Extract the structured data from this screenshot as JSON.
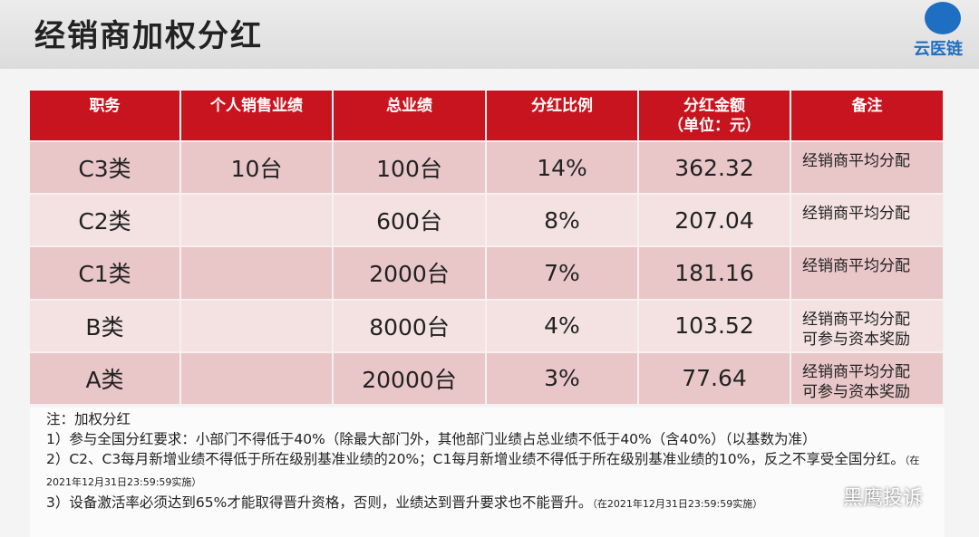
{
  "header": {
    "title": "经销商加权分红",
    "logo": "云医链"
  },
  "table": {
    "headers": [
      [
        "职务"
      ],
      [
        "个人销售业绩"
      ],
      [
        "总业绩"
      ],
      [
        "分红比例"
      ],
      [
        "分红金额",
        "（单位：元）"
      ],
      [
        "备注"
      ]
    ],
    "rows": [
      [
        "C3类",
        "10台",
        "100台",
        "14%",
        "362.32",
        [
          "经销商平均分配"
        ]
      ],
      [
        "C2类",
        null,
        "600台",
        "8%",
        "207.04",
        [
          "经销商平均分配"
        ]
      ],
      [
        "C1类",
        null,
        "2000台",
        "7%",
        "181.16",
        [
          "经销商平均分配"
        ]
      ],
      [
        "B类",
        null,
        "8000台",
        "4%",
        "103.52",
        [
          "经销商平均分配",
          "可参与资本奖励"
        ]
      ],
      [
        "A类",
        null,
        "20000台",
        "3%",
        "77.64",
        [
          "经销商平均分配",
          "可参与资本奖励"
        ]
      ]
    ]
  },
  "notes": [
    {
      "text": "注：加权分红"
    },
    {
      "text": "1）参与全国分红要求：小部门不得低于40%（除最大部门外，其他部门业绩占总业绩不低于40%（含40%）（以基数为准）"
    },
    {
      "text": "2）C2、C3每月新增业绩不得低于所在级别基准业绩的20%；C1每月新增业绩不得低于所在级别基准业绩的10%，反之不享受全国分红。",
      "small": "（在2021年12月31日23:59:59实施）"
    },
    {
      "text": "3）设备激活率必须达到65%才能取得晋升资格，否则，业绩达到晋升要求也不能晋升。",
      "small": "（在2021年12月31日23:59:59实施）"
    }
  ],
  "watermark": "黑鹰投诉"
}
